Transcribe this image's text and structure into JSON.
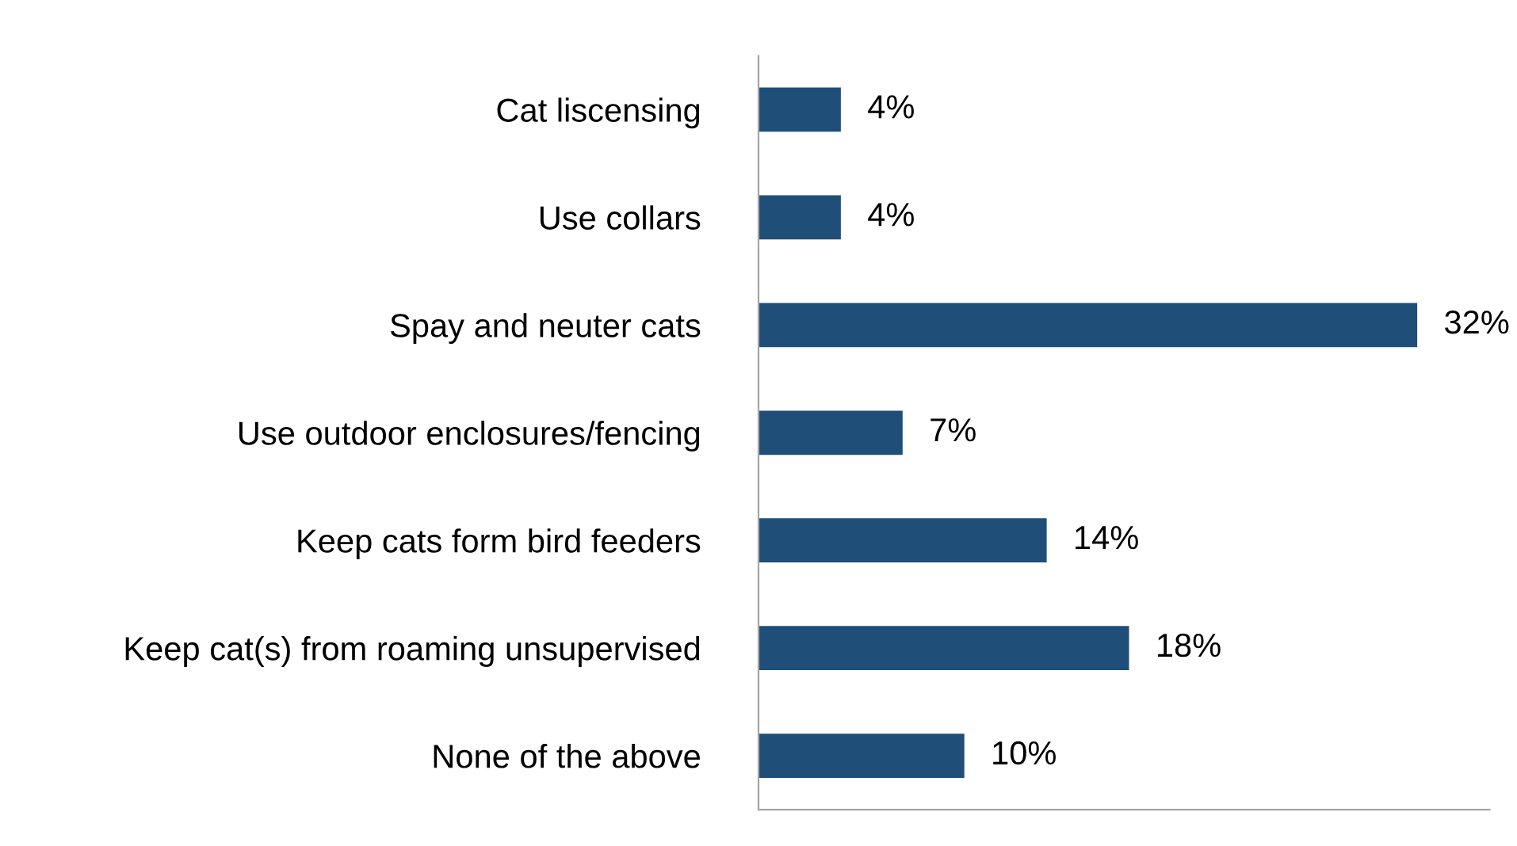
{
  "chart_data": {
    "type": "bar",
    "orientation": "horizontal",
    "categories": [
      "Cat liscensing",
      "Use collars",
      "Spay and neuter cats",
      "Use outdoor enclosures/fencing",
      "Keep cats form bird feeders",
      "Keep cat(s) from roaming unsupervised",
      "None of the above"
    ],
    "values": [
      4,
      4,
      32,
      7,
      14,
      18,
      10
    ],
    "value_labels": [
      "4%",
      "4%",
      "32%",
      "7%",
      "14%",
      "18%",
      "10%"
    ],
    "color": "#1f4e79",
    "grid": false,
    "legend": false
  }
}
